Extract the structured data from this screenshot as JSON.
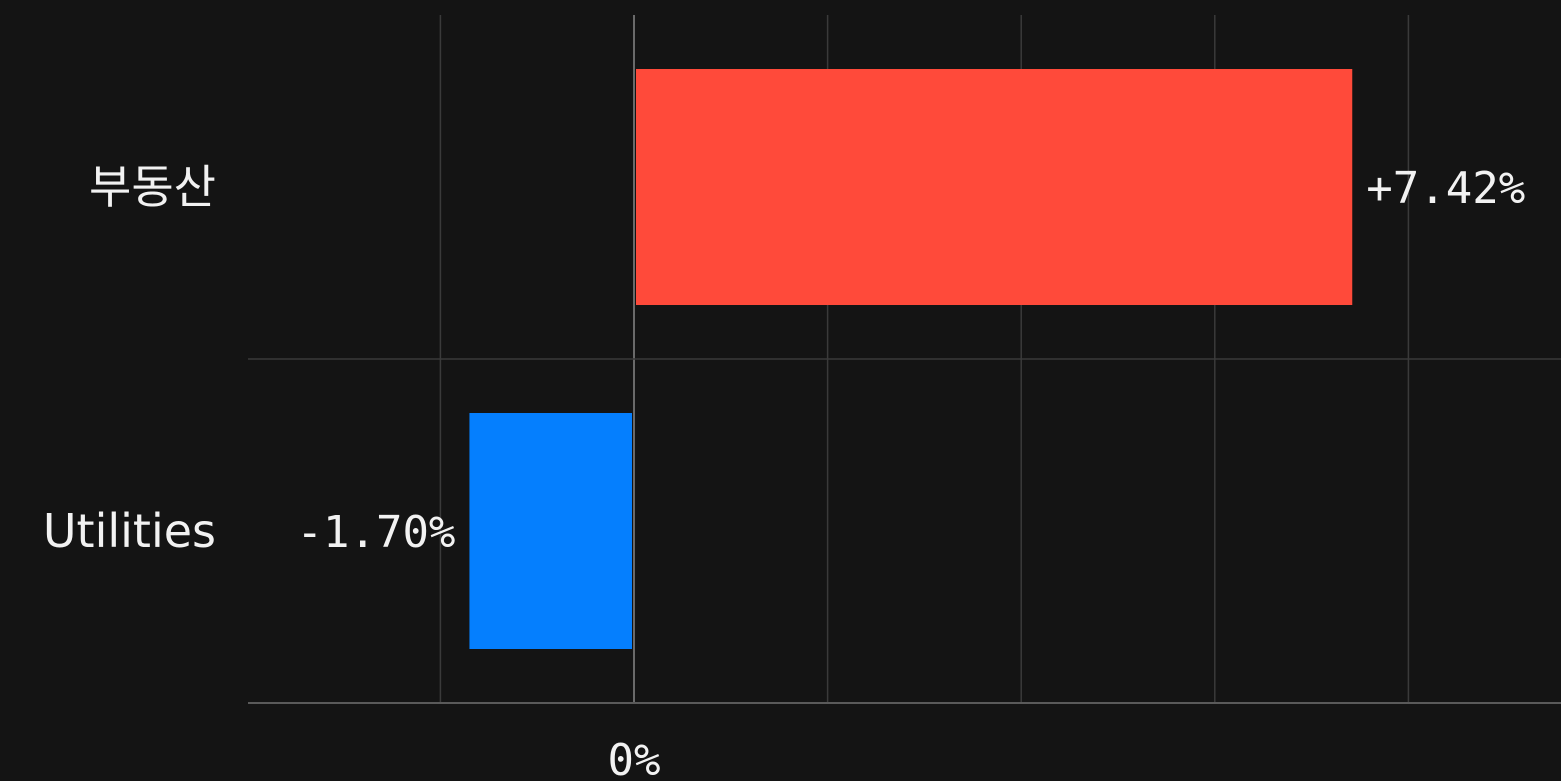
{
  "chart_data": {
    "type": "bar",
    "orientation": "horizontal",
    "categories": [
      "부동산",
      "Utilities"
    ],
    "values": [
      7.42,
      -1.7
    ],
    "value_labels": [
      "+7.42%",
      "-1.70%"
    ],
    "colors": [
      "#ff4a3a",
      "#057ffe"
    ],
    "xlim": [
      -4,
      10
    ],
    "x_grid_step": 2,
    "x_tick_labels": [
      {
        "value": 0,
        "label": "0%"
      }
    ],
    "grid": true,
    "title": "",
    "xlabel": "",
    "ylabel": ""
  },
  "theme": {
    "background": "#141414",
    "grid_color": "#3a3a3a",
    "text_color": "#f2f2f2"
  }
}
